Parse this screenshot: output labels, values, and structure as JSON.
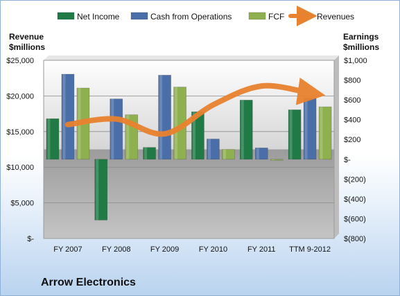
{
  "chart_data": {
    "type": "bar",
    "title": "",
    "footer_label": "Arrow Electronics",
    "categories": [
      "FY 2007",
      "FY 2008",
      "FY 2009",
      "FY 2010",
      "FY 2011",
      "TTM 9-2012"
    ],
    "left_axis": {
      "label_line1": "Revenue",
      "label_line2": "$millions",
      "ticks": [
        "$25,000",
        "$20,000",
        "$15,000",
        "$10,000",
        "$5,000",
        "$-"
      ],
      "ylim": [
        0,
        25000
      ]
    },
    "right_axis": {
      "label_line1": "Earnings",
      "label_line2": "$millions",
      "ticks": [
        "$1,000",
        "$800",
        "$600",
        "$400",
        "$200",
        "$-",
        "$(200)",
        "$(400)",
        "$(600)",
        "$(800)"
      ],
      "ylim": [
        -800,
        1000
      ]
    },
    "series": [
      {
        "name": "Net Income",
        "axis": "right",
        "kind": "bar",
        "color": "#1f7a45",
        "values": [
          410,
          -614,
          120,
          480,
          598,
          500
        ]
      },
      {
        "name": "Cash from Operations",
        "axis": "right",
        "kind": "bar",
        "color": "#4a6ea8",
        "values": [
          860,
          610,
          850,
          205,
          115,
          620
        ]
      },
      {
        "name": "FCF",
        "axis": "right",
        "kind": "bar",
        "color": "#8fb04e",
        "values": [
          720,
          450,
          730,
          100,
          -10,
          530
        ]
      },
      {
        "name": "Revenues",
        "axis": "left",
        "kind": "line",
        "color": "#e9822f",
        "values": [
          15985,
          16761,
          14684,
          18745,
          21390,
          20400
        ]
      }
    ],
    "legend_position": "top",
    "grid": true
  }
}
